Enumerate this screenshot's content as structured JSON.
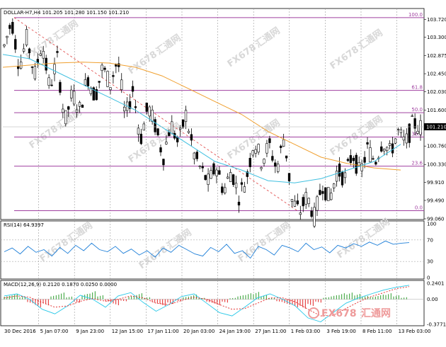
{
  "chart_data": [
    {
      "type": "candlestick",
      "title": "DOLLAR-H7,H4  101.205 101.280 101.150 101.210",
      "price_scale": {
        "ylim": [
          99.06,
          103.94
        ],
        "ticks": [
          "103.720",
          "103.300",
          "102.875",
          "102.450",
          "102.030",
          "101.600",
          "101.210",
          "100.760",
          "100.330",
          "99.910",
          "99.490",
          "99.060"
        ],
        "last_price": "101.210"
      },
      "x_labels": [
        "30 Dec 2016",
        "5 Jan 07:00",
        "9 Jan 23:00",
        "12 Jan 15:00",
        "17 Jan 11:00",
        "20 Jan 03:00",
        "24 Jan 19:00",
        "27 Jan 11:00",
        "1 Feb 03:00",
        "3 Feb 19:00",
        "8 Feb 11:00",
        "13 Feb 03:00"
      ],
      "close_path": [
        103.1,
        103.7,
        102.6,
        103.3,
        102.4,
        103.2,
        102.1,
        102.8,
        101.3,
        102.0,
        101.6,
        102.4,
        101.9,
        102.6,
        102.2,
        102.8,
        101.4,
        102.1,
        100.9,
        101.7,
        101.2,
        100.5,
        101.3,
        100.8,
        101.5,
        100.6,
        100.2,
        99.9,
        100.3,
        99.7,
        100.2,
        99.6,
        100.0,
        100.9,
        100.4,
        100.8,
        100.2,
        101.0,
        99.5,
        99.2,
        99.6,
        99.1,
        99.9,
        99.5,
        100.2,
        100.0,
        100.6,
        100.1,
        100.7,
        100.4,
        100.9,
        100.6,
        101.1,
        100.8,
        101.3,
        101.2
      ],
      "ma_orange": [
        102.6,
        102.65,
        102.7,
        102.72,
        102.7,
        102.6,
        102.4,
        102.1,
        101.8,
        101.5,
        101.1,
        100.8,
        100.5,
        100.35,
        100.25,
        100.2
      ],
      "ma_blue": [
        102.9,
        102.8,
        102.5,
        102.2,
        101.9,
        101.6,
        101.2,
        100.8,
        100.4,
        100.2,
        99.95,
        99.9,
        100.0,
        100.2,
        100.4,
        100.8
      ],
      "fibonacci": [
        {
          "label": "100.0",
          "price": 103.76
        },
        {
          "label": "61.8",
          "price": 102.06
        },
        {
          "label": "50.0",
          "price": 101.54
        },
        {
          "label": "38.2",
          "price": 100.97
        },
        {
          "label": "23.6",
          "price": 100.29
        },
        {
          "label": "0.0",
          "price": 99.25
        }
      ]
    },
    {
      "type": "line",
      "title": "RSI(14) 64.9397",
      "ylim": [
        0,
        100
      ],
      "ticks": [
        "100",
        "70",
        "30",
        "0"
      ],
      "levels": [
        70,
        30
      ],
      "values": [
        48,
        55,
        44,
        58,
        47,
        52,
        40,
        56,
        45,
        60,
        50,
        64,
        52,
        48,
        58,
        45,
        53,
        42,
        50,
        38,
        55,
        47,
        60,
        52,
        44,
        40,
        56,
        48,
        62,
        45,
        50,
        36,
        58,
        52,
        42,
        60,
        55,
        48,
        64,
        52,
        57,
        46,
        60,
        55,
        63,
        58,
        66,
        60,
        68,
        62,
        64,
        65
      ]
    },
    {
      "type": "bar",
      "title": "MACD(12,26,9) 0.2120 0.1870 0.0250 0.0000",
      "ylim": [
        -0.3771,
        0.2401
      ],
      "ticks": [
        "0.2401",
        "0.00",
        "-0.3771"
      ],
      "histogram": [
        0.05,
        0.08,
        0.04,
        -0.06,
        -0.12,
        -0.08,
        0.06,
        0.1,
        0.04,
        -0.05,
        0.08,
        0.12,
        0.06,
        -0.04,
        -0.09,
        -0.03,
        0.05,
        0.09,
        0.03,
        -0.06,
        -0.1,
        -0.07,
        -0.03,
        0.04,
        0.07,
        0.02,
        -0.05,
        -0.09,
        -0.05,
        0.02,
        0.06,
        0.09,
        0.11,
        0.06,
        0.02,
        -0.04,
        -0.08,
        -0.12,
        -0.14,
        -0.1,
        -0.05,
        0.03,
        0.06,
        0.09,
        0.1,
        0.08,
        0.05,
        0.04,
        0.07,
        0.09,
        0.06,
        0.03
      ],
      "macd_line": [
        0.05,
        0.08,
        0.0,
        -0.15,
        -0.22,
        -0.1,
        0.06,
        0.0,
        -0.12,
        0.05,
        0.1,
        -0.05,
        -0.18,
        -0.08,
        0.04,
        0.08,
        -0.06,
        -0.2,
        -0.25,
        -0.12,
        0.02,
        0.08,
        0.0,
        -0.1,
        -0.28,
        -0.34,
        -0.2,
        -0.06,
        0.02,
        0.08,
        0.14,
        0.18,
        0.21
      ],
      "signal_line": [
        0.02,
        0.05,
        0.03,
        -0.05,
        -0.12,
        -0.1,
        -0.03,
        0.01,
        -0.03,
        0.0,
        0.05,
        0.02,
        -0.06,
        -0.08,
        -0.02,
        0.03,
        0.0,
        -0.08,
        -0.15,
        -0.14,
        -0.06,
        0.02,
        0.02,
        -0.04,
        -0.15,
        -0.25,
        -0.24,
        -0.14,
        -0.04,
        0.04,
        0.1,
        0.16,
        0.19
      ]
    }
  ],
  "watermarks": [
    "FX678",
    "汇通网"
  ],
  "logo": {
    "brand": "FX678",
    "text": "汇通网"
  },
  "colors": {
    "bull": "#000000",
    "bear": "#000000",
    "ma_orange": "#f0a030",
    "ma_blue": "#40c0e0",
    "fib": "#a040a0",
    "macd_pos": "#2e9e2e",
    "macd_neg": "#e02020",
    "rsi": "#1e7fd8",
    "signal": "#e02020",
    "macd_line": "#28c8e8"
  }
}
